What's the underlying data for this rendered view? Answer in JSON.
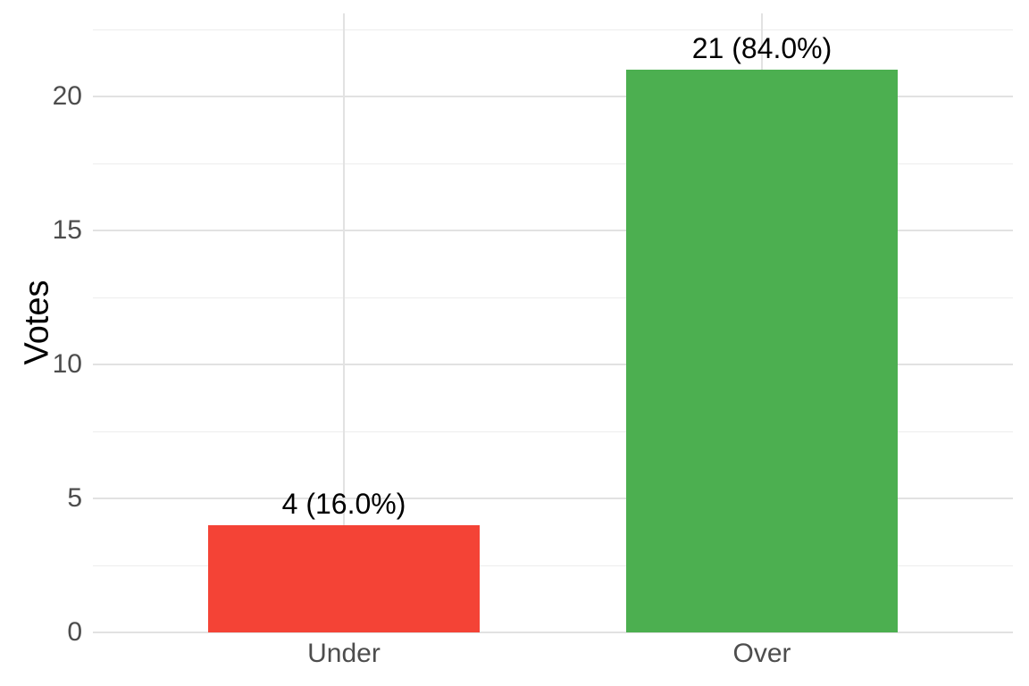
{
  "chart_data": {
    "type": "bar",
    "title": "",
    "categories": [
      "Under",
      "Over"
    ],
    "values": [
      4,
      21
    ],
    "bar_labels": [
      "4 (16.0%)",
      "21 (84.0%)"
    ],
    "bar_colors": [
      "#F44336",
      "#4CAF50"
    ],
    "xlabel": "",
    "ylabel": "Votes",
    "ylim": [
      0,
      23.1
    ],
    "yticks": [
      0,
      5,
      10,
      15,
      20
    ],
    "yticks_minor": [
      2.5,
      7.5,
      12.5,
      17.5,
      22.5
    ],
    "grid": "major+minor, horizontal and vertical-at-categories",
    "legend": "none",
    "colors": {
      "background": "#ffffff",
      "grid_major": "#e2e2e2",
      "grid_minor": "#ededed",
      "axis_text": "#4d4d4d",
      "axis_title": "#000000",
      "bar_label_text": "#000000"
    }
  }
}
